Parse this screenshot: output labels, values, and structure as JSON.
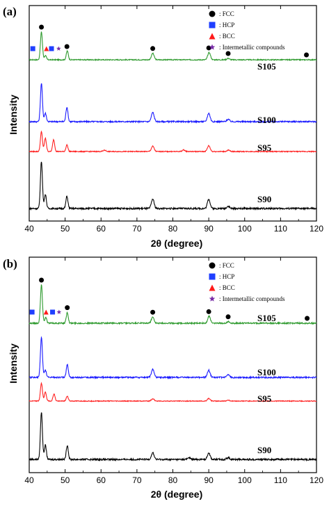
{
  "chart_data": [
    {
      "type": "line",
      "panel_label": "(a)",
      "xlabel": "2θ (degree)",
      "ylabel": "Intensity",
      "xlim": [
        40,
        120
      ],
      "xticks": [
        40,
        50,
        60,
        70,
        80,
        90,
        100,
        110,
        120
      ],
      "legend": {
        "placement": "top-right",
        "entries": [
          {
            "marker": "circle",
            "color": "#000000",
            "label": ": FCC"
          },
          {
            "marker": "square",
            "color": "#1f3fff",
            "label": ": HCP"
          },
          {
            "marker": "triangle",
            "color": "#ff1a1a",
            "label": ": BCC"
          },
          {
            "marker": "star",
            "color": "#7a2fa8",
            "label": ": Intermetallic compounds"
          }
        ]
      },
      "series": [
        {
          "name": "S105",
          "color": "#2e9a2e",
          "baseline": 0.0,
          "peaks": [
            [
              43.4,
              1.0
            ],
            [
              44.5,
              0.15
            ],
            [
              50.6,
              0.32
            ],
            [
              74.4,
              0.23
            ],
            [
              90.1,
              0.26
            ],
            [
              95.4,
              0.05
            ]
          ]
        },
        {
          "name": "S100",
          "color": "#1a1aff",
          "baseline": 0.0,
          "peaks": [
            [
              43.4,
              1.0
            ],
            [
              44.5,
              0.22
            ],
            [
              50.5,
              0.38
            ],
            [
              74.4,
              0.24
            ],
            [
              90.0,
              0.22
            ],
            [
              95.4,
              0.06
            ]
          ]
        },
        {
          "name": "S95",
          "color": "#ff2020",
          "baseline": 0.0,
          "peaks": [
            [
              43.4,
              0.75
            ],
            [
              44.5,
              0.5
            ],
            [
              46.8,
              0.45
            ],
            [
              50.5,
              0.25
            ],
            [
              61.0,
              0.05
            ],
            [
              74.4,
              0.2
            ],
            [
              83.0,
              0.06
            ],
            [
              90.0,
              0.22
            ],
            [
              95.5,
              0.05
            ]
          ]
        },
        {
          "name": "S90",
          "color": "#000000",
          "baseline": 0.0,
          "peaks": [
            [
              43.4,
              1.0
            ],
            [
              44.5,
              0.3
            ],
            [
              50.5,
              0.26
            ],
            [
              74.4,
              0.2
            ],
            [
              90.0,
              0.2
            ],
            [
              95.4,
              0.05
            ]
          ]
        }
      ],
      "annotations": [
        {
          "marker": "circle",
          "x": 43.4
        },
        {
          "marker": "circle",
          "x": 50.5
        },
        {
          "marker": "circle",
          "x": 74.4
        },
        {
          "marker": "circle",
          "x": 90.0
        },
        {
          "marker": "circle",
          "x": 95.4
        },
        {
          "marker": "circle",
          "x": 117.2
        },
        {
          "marker": "square",
          "x": 41.0
        },
        {
          "marker": "triangle",
          "x": 44.8
        },
        {
          "marker": "square",
          "x": 46.2
        },
        {
          "marker": "star",
          "x": 48.2
        }
      ]
    },
    {
      "type": "line",
      "panel_label": "(b)",
      "xlabel": "2θ (degree)",
      "ylabel": "Intensity",
      "xlim": [
        40,
        120
      ],
      "xticks": [
        40,
        50,
        60,
        70,
        80,
        90,
        100,
        110,
        120
      ],
      "legend": {
        "placement": "top-right",
        "entries": [
          {
            "marker": "circle",
            "color": "#000000",
            "label": ": FCC"
          },
          {
            "marker": "square",
            "color": "#1f3fff",
            "label": ": HCP"
          },
          {
            "marker": "triangle",
            "color": "#ff1a1a",
            "label": ": BCC"
          },
          {
            "marker": "star",
            "color": "#7a2fa8",
            "label": ": Intermetallic compounds"
          }
        ]
      },
      "series": [
        {
          "name": "S105",
          "color": "#2e9a2e",
          "baseline": 0.0,
          "peaks": [
            [
              43.4,
              1.0
            ],
            [
              44.6,
              0.15
            ],
            [
              50.6,
              0.28
            ],
            [
              74.4,
              0.16
            ],
            [
              90.1,
              0.18
            ],
            [
              95.4,
              0.04
            ]
          ]
        },
        {
          "name": "S100",
          "color": "#1a1aff",
          "baseline": 0.0,
          "peaks": [
            [
              43.4,
              1.0
            ],
            [
              44.5,
              0.18
            ],
            [
              50.6,
              0.32
            ],
            [
              74.4,
              0.2
            ],
            [
              90.0,
              0.18
            ],
            [
              95.4,
              0.06
            ]
          ]
        },
        {
          "name": "S95",
          "color": "#ff2020",
          "baseline": 0.0,
          "peaks": [
            [
              43.4,
              0.8
            ],
            [
              44.5,
              0.4
            ],
            [
              46.9,
              0.32
            ],
            [
              50.6,
              0.22
            ],
            [
              74.4,
              0.1
            ],
            [
              90.0,
              0.12
            ],
            [
              95.4,
              0.04
            ]
          ]
        },
        {
          "name": "S90",
          "color": "#000000",
          "baseline": 0.0,
          "peaks": [
            [
              43.4,
              1.0
            ],
            [
              44.5,
              0.3
            ],
            [
              50.6,
              0.3
            ],
            [
              74.4,
              0.14
            ],
            [
              84.5,
              0.04
            ],
            [
              90.0,
              0.14
            ],
            [
              95.4,
              0.04
            ]
          ]
        }
      ],
      "annotations": [
        {
          "marker": "circle",
          "x": 43.4
        },
        {
          "marker": "circle",
          "x": 50.6
        },
        {
          "marker": "circle",
          "x": 74.4
        },
        {
          "marker": "circle",
          "x": 90.0
        },
        {
          "marker": "circle",
          "x": 95.4
        },
        {
          "marker": "circle",
          "x": 117.4
        },
        {
          "marker": "square",
          "x": 40.8
        },
        {
          "marker": "triangle",
          "x": 44.7
        },
        {
          "marker": "square",
          "x": 46.5
        },
        {
          "marker": "star",
          "x": 48.3
        }
      ]
    }
  ]
}
